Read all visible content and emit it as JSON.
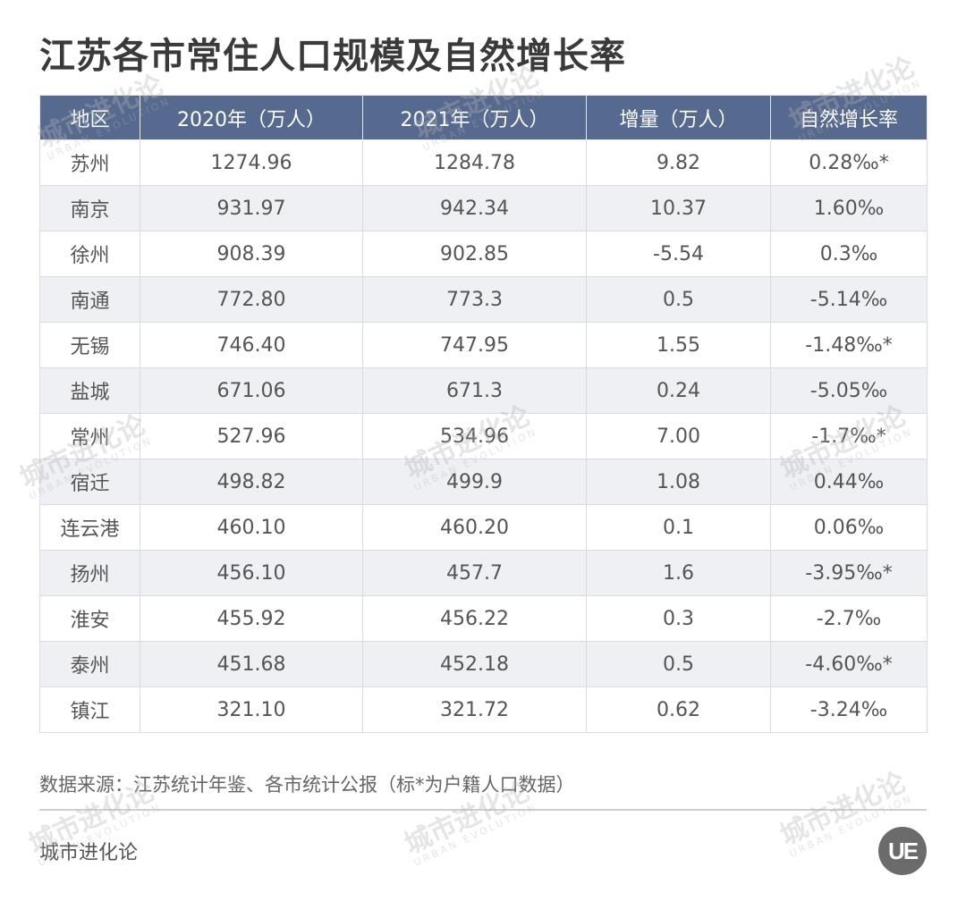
{
  "title": "江苏各市常住人口规模及自然增长率",
  "table": {
    "headers": [
      "地区",
      "2020年（万人）",
      "2021年（万人）",
      "增量（万人）",
      "自然增长率"
    ],
    "rows": [
      [
        "苏州",
        "1274.96",
        "1284.78",
        "9.82",
        "0.28‰*"
      ],
      [
        "南京",
        "931.97",
        "942.34",
        "10.37",
        "1.60‰"
      ],
      [
        "徐州",
        "908.39",
        "902.85",
        "-5.54",
        "0.3‰"
      ],
      [
        "南通",
        "772.80",
        "773.3",
        "0.5",
        "-5.14‰"
      ],
      [
        "无锡",
        "746.40",
        "747.95",
        "1.55",
        "-1.48‰*"
      ],
      [
        "盐城",
        "671.06",
        "671.3",
        "0.24",
        "-5.05‰"
      ],
      [
        "常州",
        "527.96",
        "534.96",
        "7.00",
        "-1.7‰*"
      ],
      [
        "宿迁",
        "498.82",
        "499.9",
        "1.08",
        "0.44‰"
      ],
      [
        "连云港",
        "460.10",
        "460.20",
        "0.1",
        "0.06‰"
      ],
      [
        "扬州",
        "456.10",
        "457.7",
        "1.6",
        "-3.95‰*"
      ],
      [
        "淮安",
        "455.92",
        "456.22",
        "0.3",
        "-2.7‰"
      ],
      [
        "泰州",
        "451.68",
        "452.18",
        "0.5",
        "-4.60‰*"
      ],
      [
        "镇江",
        "321.10",
        "321.72",
        "0.62",
        "-3.24‰"
      ]
    ]
  },
  "footer": {
    "source": "数据来源：江苏统计年鉴、各市统计公报（标*为户籍人口数据）",
    "brand": "城市进化论",
    "logo_text": "UE"
  },
  "watermark": {
    "text": "城市进化论",
    "subtext": "URBAN EVOLUTION"
  },
  "colors": {
    "header_bg": "#56698f",
    "stripe_bg": "#eef0f4"
  }
}
